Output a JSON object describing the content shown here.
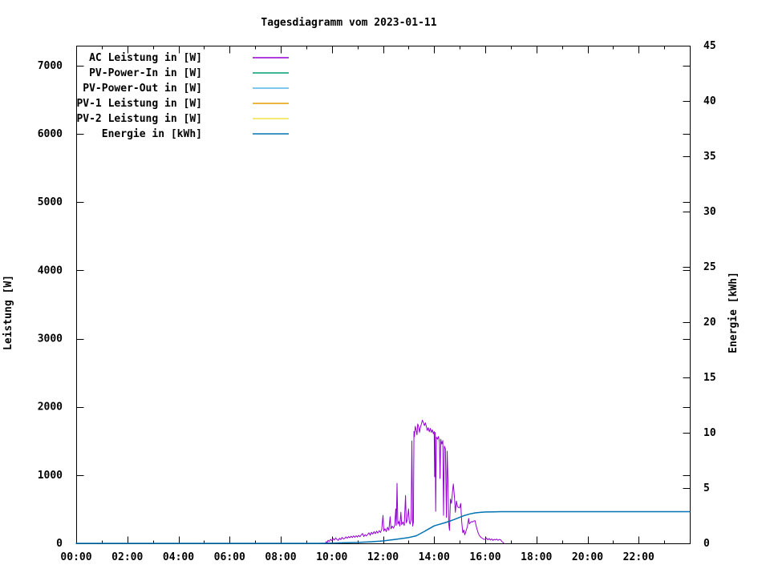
{
  "title": "Tagesdiagramm vom 2023-01-11",
  "chart_data": {
    "type": "line",
    "title": "Tagesdiagramm vom 2023-01-11",
    "grid": false,
    "legend_position": "top-left",
    "x_axis": {
      "min": 0,
      "max": 24,
      "major_tick_hours": [
        0,
        2,
        4,
        6,
        8,
        10,
        12,
        14,
        16,
        18,
        20,
        22
      ],
      "tick_labels": [
        "00:00",
        "02:00",
        "04:00",
        "06:00",
        "08:00",
        "10:00",
        "12:00",
        "14:00",
        "16:00",
        "18:00",
        "20:00",
        "22:00"
      ],
      "minor_tick_hours": [
        1,
        3,
        5,
        7,
        9,
        11,
        13,
        15,
        17,
        19,
        21,
        23
      ]
    },
    "y_axis": {
      "label": "Leistung [W]",
      "min": 0,
      "max": 7293,
      "ticks": [
        0,
        1000,
        2000,
        3000,
        4000,
        5000,
        6000,
        7000
      ]
    },
    "y2_axis": {
      "label": "Energie [kWh]",
      "min": 0,
      "max": 45,
      "ticks": [
        0,
        5,
        10,
        15,
        20,
        25,
        30,
        35,
        40,
        45
      ]
    },
    "series": [
      {
        "name": "AC Leistung in [W]",
        "color": "#9400d3",
        "axis": "y",
        "visible": true,
        "points": [
          [
            9.75,
            0
          ],
          [
            9.78,
            25
          ],
          [
            9.82,
            10
          ],
          [
            9.85,
            45
          ],
          [
            9.9,
            28
          ],
          [
            9.95,
            60
          ],
          [
            10.0,
            38
          ],
          [
            10.05,
            70
          ],
          [
            10.1,
            48
          ],
          [
            10.15,
            80
          ],
          [
            10.2,
            58
          ],
          [
            10.25,
            42
          ],
          [
            10.3,
            75
          ],
          [
            10.35,
            55
          ],
          [
            10.4,
            88
          ],
          [
            10.45,
            65
          ],
          [
            10.5,
            72
          ],
          [
            10.55,
            95
          ],
          [
            10.6,
            74
          ],
          [
            10.65,
            100
          ],
          [
            10.7,
            82
          ],
          [
            10.75,
            105
          ],
          [
            10.8,
            85
          ],
          [
            10.85,
            110
          ],
          [
            10.9,
            88
          ],
          [
            10.95,
            112
          ],
          [
            11.0,
            92
          ],
          [
            11.05,
            118
          ],
          [
            11.1,
            96
          ],
          [
            11.15,
            125
          ],
          [
            11.2,
            145
          ],
          [
            11.25,
            100
          ],
          [
            11.3,
            128
          ],
          [
            11.35,
            108
          ],
          [
            11.4,
            132
          ],
          [
            11.45,
            155
          ],
          [
            11.5,
            118
          ],
          [
            11.55,
            162
          ],
          [
            11.6,
            135
          ],
          [
            11.65,
            172
          ],
          [
            11.7,
            142
          ],
          [
            11.75,
            178
          ],
          [
            11.8,
            150
          ],
          [
            11.85,
            185
          ],
          [
            11.9,
            158
          ],
          [
            11.95,
            205
          ],
          [
            12.0,
            410
          ],
          [
            12.03,
            180
          ],
          [
            12.08,
            215
          ],
          [
            12.13,
            172
          ],
          [
            12.18,
            235
          ],
          [
            12.23,
            192
          ],
          [
            12.28,
            390
          ],
          [
            12.31,
            212
          ],
          [
            12.36,
            252
          ],
          [
            12.41,
            222
          ],
          [
            12.46,
            268
          ],
          [
            12.5,
            505
          ],
          [
            12.52,
            262
          ],
          [
            12.55,
            880
          ],
          [
            12.58,
            282
          ],
          [
            12.62,
            322
          ],
          [
            12.66,
            252
          ],
          [
            12.7,
            455
          ],
          [
            12.73,
            272
          ],
          [
            12.78,
            312
          ],
          [
            12.83,
            262
          ],
          [
            12.88,
            700
          ],
          [
            12.91,
            302
          ],
          [
            12.95,
            340
          ],
          [
            13.0,
            505
          ],
          [
            13.03,
            322
          ],
          [
            13.06,
            282
          ],
          [
            13.1,
            352
          ],
          [
            13.13,
            1500
          ],
          [
            13.16,
            252
          ],
          [
            13.19,
            310
          ],
          [
            13.21,
            1640
          ],
          [
            13.23,
            1565
          ],
          [
            13.26,
            1715
          ],
          [
            13.3,
            1655
          ],
          [
            13.33,
            1590
          ],
          [
            13.36,
            1750
          ],
          [
            13.4,
            1705
          ],
          [
            13.43,
            1625
          ],
          [
            13.46,
            1695
          ],
          [
            13.5,
            1745
          ],
          [
            13.54,
            1805
          ],
          [
            13.58,
            1770
          ],
          [
            13.62,
            1725
          ],
          [
            13.66,
            1765
          ],
          [
            13.7,
            1705
          ],
          [
            13.73,
            1655
          ],
          [
            13.77,
            1695
          ],
          [
            13.81,
            1635
          ],
          [
            13.85,
            1685
          ],
          [
            13.89,
            1625
          ],
          [
            13.93,
            1665
          ],
          [
            13.97,
            1605
          ],
          [
            14.0,
            1640
          ],
          [
            14.02,
            975
          ],
          [
            14.04,
            1625
          ],
          [
            14.06,
            470
          ],
          [
            14.09,
            1560
          ],
          [
            14.13,
            1525
          ],
          [
            14.17,
            1565
          ],
          [
            14.21,
            1485
          ],
          [
            14.23,
            950
          ],
          [
            14.26,
            1525
          ],
          [
            14.3,
            1455
          ],
          [
            14.34,
            1505
          ],
          [
            14.37,
            410
          ],
          [
            14.4,
            1425
          ],
          [
            14.44,
            1385
          ],
          [
            14.48,
            380
          ],
          [
            14.51,
            1350
          ],
          [
            14.54,
            905
          ],
          [
            14.57,
            300
          ],
          [
            14.6,
            190
          ],
          [
            14.64,
            650
          ],
          [
            14.68,
            585
          ],
          [
            14.72,
            760
          ],
          [
            14.75,
            870
          ],
          [
            14.79,
            705
          ],
          [
            14.83,
            455
          ],
          [
            14.87,
            620
          ],
          [
            14.91,
            545
          ],
          [
            14.95,
            525
          ],
          [
            15.0,
            520
          ],
          [
            15.04,
            585
          ],
          [
            15.08,
            305
          ],
          [
            15.12,
            155
          ],
          [
            15.16,
            195
          ],
          [
            15.2,
            125
          ],
          [
            15.25,
            185
          ],
          [
            15.3,
            245
          ],
          [
            15.35,
            365
          ],
          [
            15.38,
            285
          ],
          [
            15.42,
            305
          ],
          [
            15.46,
            318
          ],
          [
            15.5,
            312
          ],
          [
            15.55,
            328
          ],
          [
            15.6,
            332
          ],
          [
            15.64,
            262
          ],
          [
            15.68,
            205
          ],
          [
            15.72,
            155
          ],
          [
            15.76,
            122
          ],
          [
            15.8,
            100
          ],
          [
            15.85,
            82
          ],
          [
            15.9,
            70
          ],
          [
            15.95,
            58
          ],
          [
            16.0,
            62
          ],
          [
            16.05,
            78
          ],
          [
            16.1,
            52
          ],
          [
            16.15,
            70
          ],
          [
            16.2,
            48
          ],
          [
            16.25,
            65
          ],
          [
            16.3,
            42
          ],
          [
            16.35,
            60
          ],
          [
            16.4,
            50
          ],
          [
            16.45,
            62
          ],
          [
            16.5,
            45
          ],
          [
            16.55,
            58
          ],
          [
            16.6,
            52
          ],
          [
            16.65,
            28
          ],
          [
            16.7,
            12
          ],
          [
            16.73,
            0
          ]
        ]
      },
      {
        "name": "PV-Power-In in [W]",
        "color": "#009e73",
        "axis": "y",
        "visible": false,
        "points": []
      },
      {
        "name": "PV-Power-Out in [W]",
        "color": "#56b4e9",
        "axis": "y",
        "visible": false,
        "points": []
      },
      {
        "name": "PV-1 Leistung in [W]",
        "color": "#e69f00",
        "axis": "y",
        "visible": false,
        "points": []
      },
      {
        "name": "PV-2 Leistung in [W]",
        "color": "#f0e442",
        "axis": "y",
        "visible": false,
        "points": []
      },
      {
        "name": "Energie in [kWh]",
        "color": "#0072b2",
        "axis": "y2",
        "visible": true,
        "points": [
          [
            0,
            0
          ],
          [
            9.5,
            0
          ],
          [
            10.0,
            0.02
          ],
          [
            10.5,
            0.05
          ],
          [
            11.0,
            0.08
          ],
          [
            11.5,
            0.14
          ],
          [
            12.0,
            0.22
          ],
          [
            12.5,
            0.36
          ],
          [
            13.0,
            0.52
          ],
          [
            13.3,
            0.68
          ],
          [
            13.6,
            1.05
          ],
          [
            13.8,
            1.32
          ],
          [
            14.0,
            1.58
          ],
          [
            14.2,
            1.72
          ],
          [
            14.4,
            1.85
          ],
          [
            14.6,
            2.0
          ],
          [
            14.8,
            2.17
          ],
          [
            15.0,
            2.35
          ],
          [
            15.2,
            2.53
          ],
          [
            15.4,
            2.66
          ],
          [
            15.6,
            2.75
          ],
          [
            15.8,
            2.8
          ],
          [
            16.0,
            2.83
          ],
          [
            16.3,
            2.85
          ],
          [
            16.6,
            2.86
          ],
          [
            24,
            2.86
          ]
        ]
      }
    ]
  }
}
